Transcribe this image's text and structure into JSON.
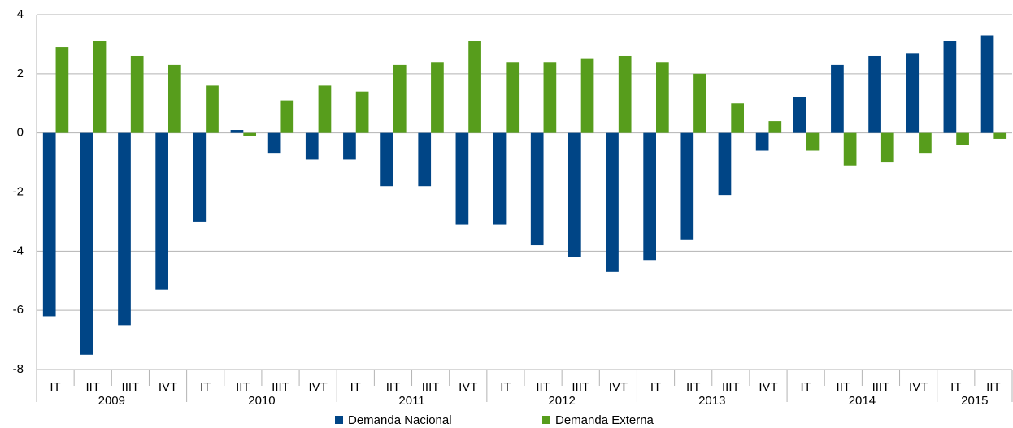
{
  "chart_data": {
    "type": "bar",
    "groups": [
      {
        "name": "2009",
        "categories": [
          "IT",
          "IIT",
          "IIIT",
          "IVT"
        ]
      },
      {
        "name": "2010",
        "categories": [
          "IT",
          "IIT",
          "IIIT",
          "IVT"
        ]
      },
      {
        "name": "2011",
        "categories": [
          "IT",
          "IIT",
          "IIIT",
          "IVT"
        ]
      },
      {
        "name": "2012",
        "categories": [
          "IT",
          "IIT",
          "IIIT",
          "IVT"
        ]
      },
      {
        "name": "2013",
        "categories": [
          "IT",
          "IIT",
          "IIIT",
          "IVT"
        ]
      },
      {
        "name": "2014",
        "categories": [
          "IT",
          "IIT",
          "IIIT",
          "IVT"
        ]
      },
      {
        "name": "2015",
        "categories": [
          "IT",
          "IIT"
        ]
      }
    ],
    "series": [
      {
        "name": "Demanda Nacional",
        "color": "#004586",
        "values": [
          -6.2,
          -7.5,
          -6.5,
          -5.3,
          -3.0,
          0.1,
          -0.7,
          -0.9,
          -0.9,
          -1.8,
          -1.8,
          -3.1,
          -3.1,
          -3.8,
          -4.2,
          -4.7,
          -4.3,
          -3.6,
          -2.1,
          -0.6,
          1.2,
          2.3,
          2.6,
          2.7,
          3.1,
          3.3
        ]
      },
      {
        "name": "Demanda Externa",
        "color": "#579d1c",
        "values": [
          2.9,
          3.1,
          2.6,
          2.3,
          1.6,
          -0.1,
          1.1,
          1.6,
          1.4,
          2.3,
          2.4,
          3.1,
          2.4,
          2.4,
          2.5,
          2.6,
          2.4,
          2.0,
          1.0,
          0.4,
          -0.6,
          -1.1,
          -1.0,
          -0.7,
          -0.4,
          -0.2
        ]
      }
    ],
    "ylim": [
      -8,
      4
    ],
    "yticks": [
      -8,
      -6,
      -4,
      -2,
      0,
      2,
      4
    ],
    "grid": true,
    "legend": "bottom"
  }
}
